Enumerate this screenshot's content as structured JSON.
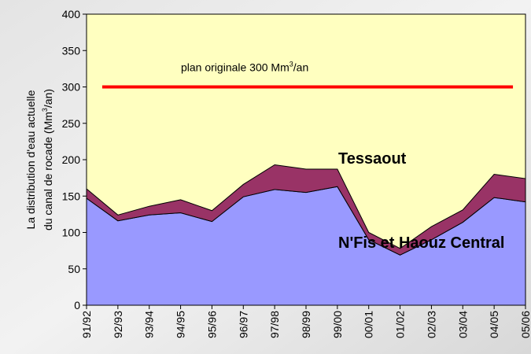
{
  "chart_data": {
    "type": "stacked_area",
    "categories": [
      "91/92",
      "92/93",
      "93/94",
      "94/95",
      "95/96",
      "96/97",
      "97/98",
      "98/99",
      "99/00",
      "00/01",
      "01/02",
      "02/03",
      "03/04",
      "04/05",
      "05/06"
    ],
    "series": [
      {
        "name": "N'Fis et Haouz Central",
        "color": "#9999ff",
        "values": [
          147,
          116,
          124,
          127,
          115,
          149,
          159,
          155,
          163,
          90,
          69,
          90,
          114,
          148,
          142
        ]
      },
      {
        "name": "Tessaout",
        "color": "#993366",
        "values": [
          13,
          8,
          12,
          18,
          15,
          17,
          34,
          32,
          24,
          10,
          9,
          18,
          17,
          32,
          32
        ]
      }
    ],
    "ylim": [
      0,
      400
    ],
    "yticks": [
      0,
      50,
      100,
      150,
      200,
      250,
      300,
      350,
      400
    ],
    "ylabel_line1": "La distribution d'eau actuelle",
    "ylabel_line2": [
      "du canal de rocade (Mm",
      "3",
      "/an)"
    ],
    "plan_line": {
      "value": 300,
      "color": "#ff0000",
      "label": [
        "plan originale 300 Mm",
        "3",
        "/an"
      ]
    },
    "plot_background": "#ffffc0"
  }
}
